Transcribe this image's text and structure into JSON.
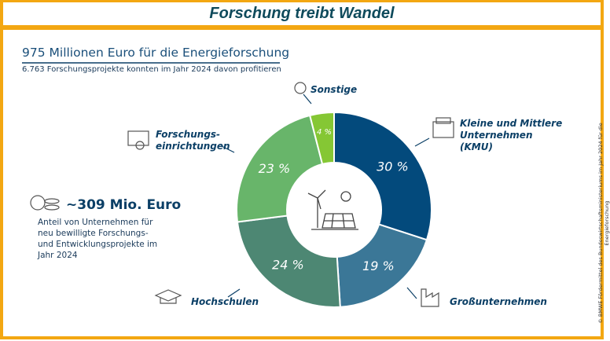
{
  "chart_data": {
    "type": "donut",
    "banner": "Forschung treibt Wandel",
    "title": "975 Millionen Euro für die Energieforschung",
    "subtitle": "6.763 Forschungsprojekte konnten im Jahr 2024 davon profitieren",
    "categories": [
      "Kleine und Mittlere\nUnternehmen\n(KMU)",
      "Großunternehmen",
      "Hochschulen",
      "Forschungs-\neinrichtungen",
      "Sonstige"
    ],
    "values": [
      30,
      19,
      24,
      23,
      4
    ],
    "value_labels": [
      "30 %",
      "19 %",
      "24 %",
      "23 %",
      "4 %"
    ],
    "colors": [
      "#034a7c",
      "#3b7797",
      "#4d8773",
      "#68b56a",
      "#85c734"
    ],
    "annotation": {
      "headline": "~309 Mio. Euro",
      "text": "Anteil von Unternehmen für\nneu bewilligte Forschungs-\nund Entwicklungsprojekte im\nJahr 2024"
    },
    "source": "© BMWE Fördermittel des Bundeswirtschaftsministeriums  im Jahr 2024 für die Energieforschung"
  }
}
